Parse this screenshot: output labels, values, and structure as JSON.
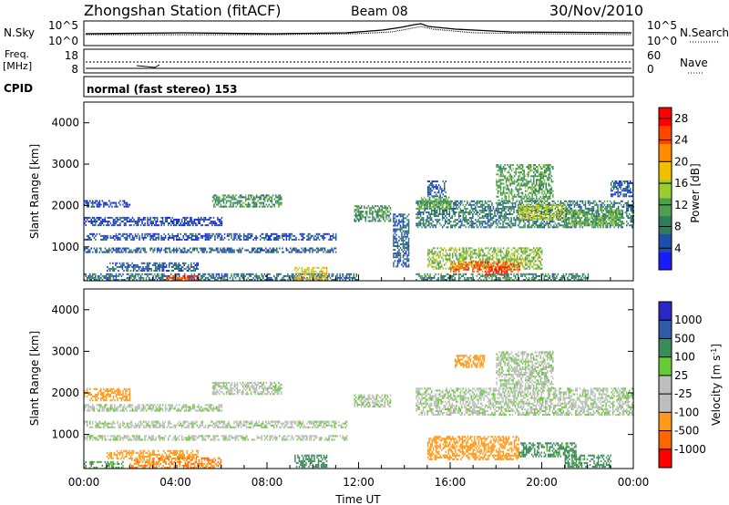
{
  "header": {
    "station": "Zhongshan Station (fitACF)",
    "beam": "Beam 08",
    "date": "30/Nov/2010"
  },
  "top_panels": {
    "nsky_label": "N.Sky",
    "nsky_ticks": [
      "10^5",
      "10^0"
    ],
    "nsearch_label": "N.Search",
    "nsearch_ticks": [
      "10^5",
      "10^0"
    ],
    "freq_label_1": "Freq.",
    "freq_label_2": "[MHz]",
    "freq_ticks": [
      "18",
      "8"
    ],
    "nave_label": "Nave",
    "nave_ticks": [
      "60",
      "0"
    ],
    "cpid_label": "CPID",
    "cpid_value": "normal (fast stereo) 153"
  },
  "colors": {
    "power_scale": [
      "#1a1aff",
      "#1d4fa8",
      "#2e7d5b",
      "#4ea050",
      "#9acd32",
      "#f0c000",
      "#ff8c00",
      "#ff4500",
      "#ff0000"
    ],
    "velocity_scale": [
      "#2828c8",
      "#2e5aa8",
      "#3c8c5a",
      "#66cc33",
      "#bebebe",
      "#bebebe",
      "#ff9a1a",
      "#ff6600",
      "#ff0000"
    ]
  },
  "chart_data": [
    {
      "type": "heatmap",
      "title": "",
      "xlabel": "",
      "ylabel": "Slant Range [km]",
      "xlim": [
        0,
        24
      ],
      "ylim": [
        180,
        4500
      ],
      "x_ticks": [
        "00:00",
        "04:00",
        "08:00",
        "12:00",
        "16:00",
        "20:00",
        "00:00"
      ],
      "y_ticks": [
        1000,
        2000,
        3000,
        4000
      ],
      "colorbar_label": "Power [dB]",
      "colorbar_ticks": [
        4,
        8,
        12,
        16,
        20,
        24,
        28
      ],
      "colorbar_range": [
        0,
        30
      ],
      "regions": [
        {
          "t": [
            0.0,
            6.0
          ],
          "r": [
            1500,
            1700
          ],
          "v": 4
        },
        {
          "t": [
            0.0,
            2.0
          ],
          "r": [
            1950,
            2100
          ],
          "v": 4
        },
        {
          "t": [
            0.0,
            11.0
          ],
          "r": [
            1150,
            1300
          ],
          "v": 5
        },
        {
          "t": [
            0.0,
            11.0
          ],
          "r": [
            850,
            950
          ],
          "v": 6
        },
        {
          "t": [
            1.0,
            5.0
          ],
          "r": [
            400,
            600
          ],
          "v": 6
        },
        {
          "t": [
            0.0,
            12.0
          ],
          "r": [
            180,
            350
          ],
          "v": 7
        },
        {
          "t": [
            3.6,
            5.0
          ],
          "r": [
            180,
            300
          ],
          "v": 24
        },
        {
          "t": [
            9.2,
            10.6
          ],
          "r": [
            200,
            500
          ],
          "v": 18
        },
        {
          "t": [
            5.6,
            8.6
          ],
          "r": [
            1950,
            2250
          ],
          "v": 10
        },
        {
          "t": [
            11.8,
            13.4
          ],
          "r": [
            1600,
            2000
          ],
          "v": 10
        },
        {
          "t": [
            13.5,
            14.2
          ],
          "r": [
            500,
            1800
          ],
          "v": 6
        },
        {
          "t": [
            14.5,
            24.0
          ],
          "r": [
            1450,
            2100
          ],
          "v": 8
        },
        {
          "t": [
            14.6,
            16.0
          ],
          "r": [
            1900,
            2200
          ],
          "v": 12
        },
        {
          "t": [
            15.0,
            15.8
          ],
          "r": [
            2200,
            2600
          ],
          "v": 6
        },
        {
          "t": [
            15.0,
            20.0
          ],
          "r": [
            450,
            950
          ],
          "v": 14
        },
        {
          "t": [
            16.0,
            19.0
          ],
          "r": [
            380,
            650
          ],
          "v": 24
        },
        {
          "t": [
            17.5,
            18.5
          ],
          "r": [
            300,
            500
          ],
          "v": 28
        },
        {
          "t": [
            14.5,
            22.0
          ],
          "r": [
            180,
            350
          ],
          "v": 9
        },
        {
          "t": [
            18.0,
            20.5
          ],
          "r": [
            2100,
            3000
          ],
          "v": 11
        },
        {
          "t": [
            19.0,
            21.0
          ],
          "r": [
            1650,
            2050
          ],
          "v": 16
        },
        {
          "t": [
            21.0,
            23.5
          ],
          "r": [
            1500,
            1900
          ],
          "v": 12
        },
        {
          "t": [
            23.0,
            24.0
          ],
          "r": [
            2200,
            2600
          ],
          "v": 6
        }
      ]
    },
    {
      "type": "heatmap",
      "title": "",
      "xlabel": "Time UT",
      "ylabel": "Slant Range [km]",
      "xlim": [
        0,
        24
      ],
      "ylim": [
        180,
        4500
      ],
      "x_ticks": [
        "00:00",
        "04:00",
        "08:00",
        "12:00",
        "16:00",
        "20:00",
        "00:00"
      ],
      "y_ticks": [
        1000,
        2000,
        3000,
        4000
      ],
      "colorbar_label": "Velocity [m s^-1]",
      "colorbar_ticks": [
        1000,
        500,
        100,
        25,
        -25,
        -100,
        -500,
        -1000
      ],
      "colorbar_range": [
        -1000,
        1000
      ],
      "regions": [
        {
          "t": [
            0.0,
            11.5
          ],
          "r": [
            1150,
            1300
          ],
          "v": 0
        },
        {
          "t": [
            0.0,
            11.5
          ],
          "r": [
            850,
            950
          ],
          "v": 0
        },
        {
          "t": [
            0.0,
            6.0
          ],
          "r": [
            1550,
            1700
          ],
          "v": 0
        },
        {
          "t": [
            0.0,
            2.0
          ],
          "r": [
            1800,
            2100
          ],
          "v": -200
        },
        {
          "t": [
            1.0,
            5.0
          ],
          "r": [
            400,
            600
          ],
          "v": -200
        },
        {
          "t": [
            0.0,
            1.8
          ],
          "r": [
            180,
            350
          ],
          "v": 100
        },
        {
          "t": [
            2.0,
            6.0
          ],
          "r": [
            180,
            450
          ],
          "v": -500
        },
        {
          "t": [
            5.6,
            8.6
          ],
          "r": [
            1950,
            2250
          ],
          "v": 0
        },
        {
          "t": [
            9.2,
            10.6
          ],
          "r": [
            200,
            500
          ],
          "v": 300
        },
        {
          "t": [
            11.8,
            13.4
          ],
          "r": [
            1650,
            1950
          ],
          "v": 0
        },
        {
          "t": [
            14.5,
            24.0
          ],
          "r": [
            1450,
            2100
          ],
          "v": 0
        },
        {
          "t": [
            15.0,
            19.0
          ],
          "r": [
            380,
            950
          ],
          "v": -300
        },
        {
          "t": [
            16.2,
            17.5
          ],
          "r": [
            2600,
            2900
          ],
          "v": -200
        },
        {
          "t": [
            18.0,
            20.5
          ],
          "r": [
            2100,
            3000
          ],
          "v": 0
        },
        {
          "t": [
            19.0,
            21.5
          ],
          "r": [
            450,
            800
          ],
          "v": 150
        },
        {
          "t": [
            21.0,
            23.0
          ],
          "r": [
            200,
            500
          ],
          "v": 150
        }
      ]
    }
  ]
}
